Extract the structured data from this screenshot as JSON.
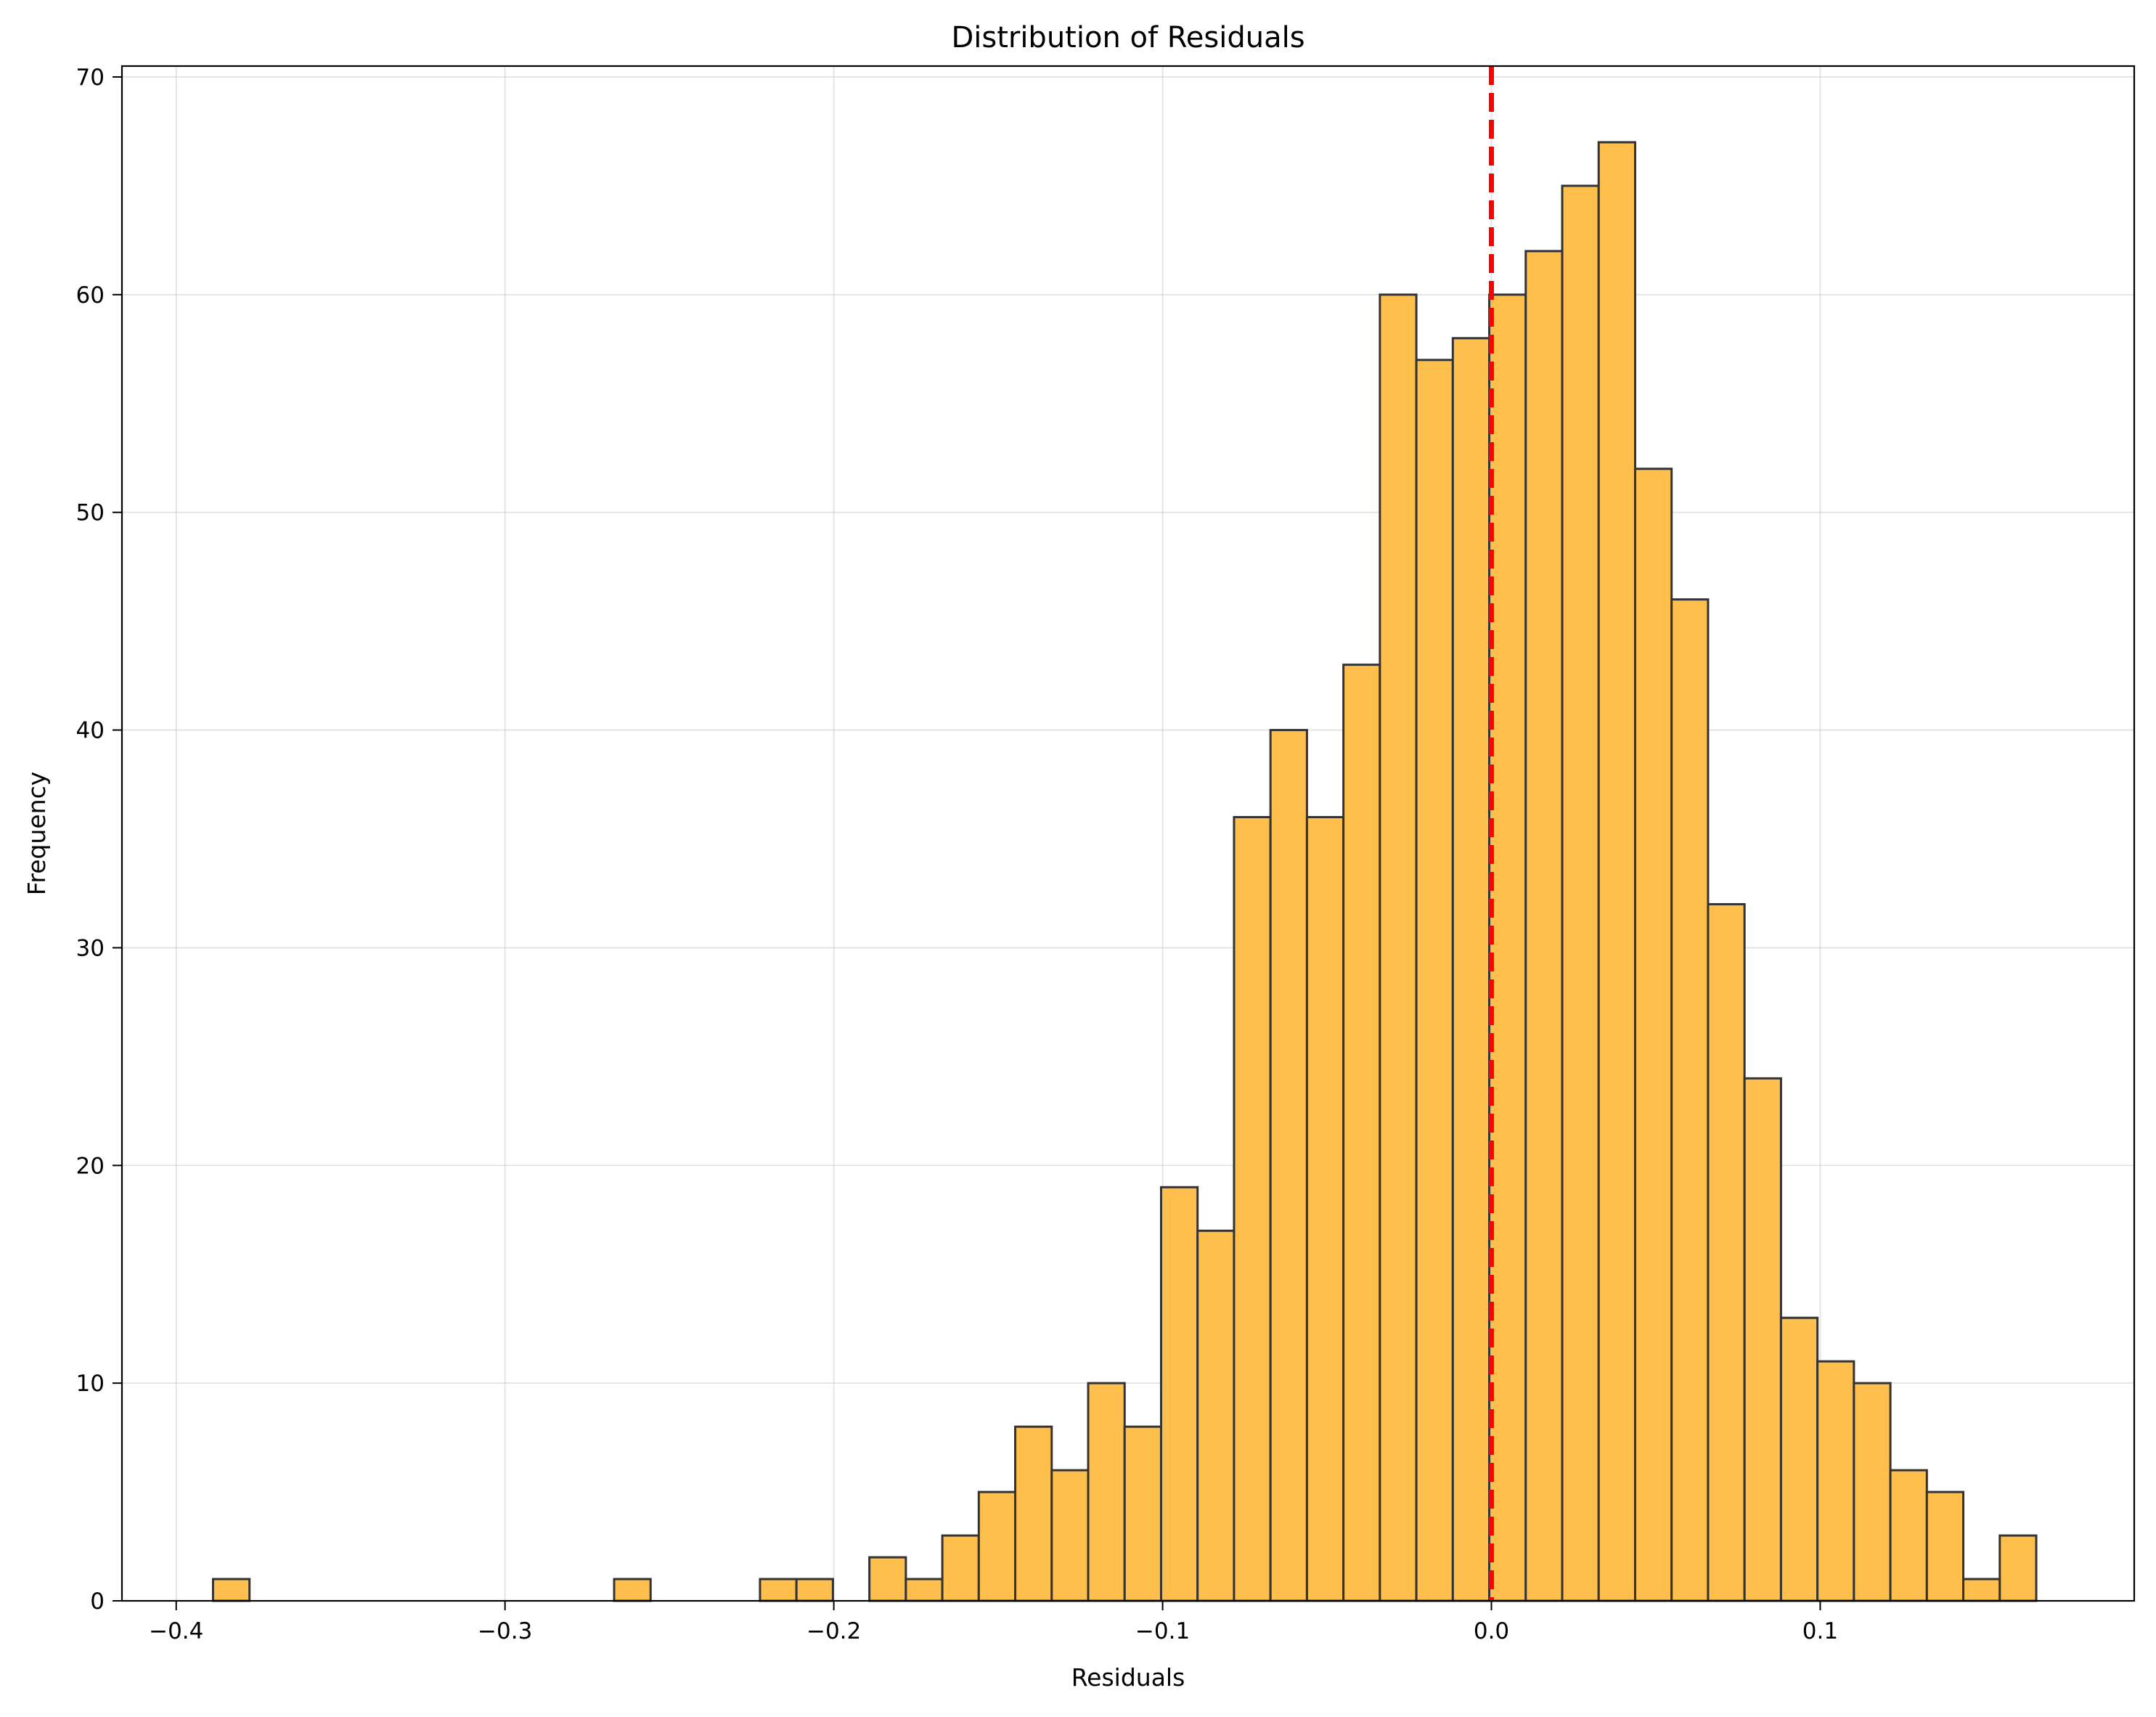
{
  "chart_data": {
    "type": "bar",
    "title": "Distribution of Residuals",
    "xlabel": "Residuals",
    "ylabel": "Frequency",
    "xlim": [
      -0.4165,
      0.1955
    ],
    "ylim": [
      0,
      70.5
    ],
    "xticks": [
      {
        "value": -0.4,
        "label": "−0.4"
      },
      {
        "value": -0.3,
        "label": "−0.3"
      },
      {
        "value": -0.2,
        "label": "−0.2"
      },
      {
        "value": -0.1,
        "label": "−0.1"
      },
      {
        "value": 0.0,
        "label": "0.0"
      },
      {
        "value": 0.1,
        "label": "0.1"
      }
    ],
    "yticks": [
      {
        "value": 0,
        "label": "0"
      },
      {
        "value": 10,
        "label": "10"
      },
      {
        "value": 20,
        "label": "20"
      },
      {
        "value": 30,
        "label": "30"
      },
      {
        "value": 40,
        "label": "40"
      },
      {
        "value": 50,
        "label": "50"
      },
      {
        "value": 60,
        "label": "60"
      },
      {
        "value": 70,
        "label": "70"
      }
    ],
    "bin_start": -0.3888,
    "bin_width": 0.01109,
    "values": [
      1,
      0,
      0,
      0,
      0,
      0,
      0,
      0,
      0,
      0,
      0,
      1,
      0,
      0,
      0,
      1,
      1,
      0,
      2,
      1,
      3,
      5,
      8,
      6,
      10,
      8,
      19,
      17,
      36,
      40,
      36,
      43,
      60,
      57,
      58,
      60,
      62,
      65,
      67,
      52,
      46,
      32,
      24,
      13,
      11,
      10,
      6,
      5,
      1,
      3
    ],
    "reference_line": {
      "x": 0.0,
      "style": "dashed",
      "color": "#ff0000"
    },
    "bar_color": "#ffbf4d",
    "bar_edge_color": "#333333",
    "grid": true
  }
}
